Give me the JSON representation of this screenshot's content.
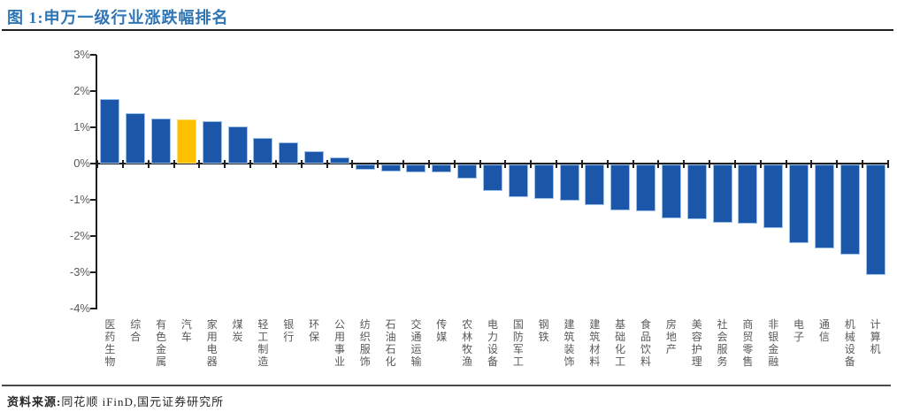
{
  "header": {
    "title": "图 1:申万一级行业涨跌幅排名"
  },
  "footer": {
    "source_label": "资料来源:",
    "source_text": "同花顺 iFinD,国元证券研究所"
  },
  "chart_data": {
    "type": "bar",
    "title": "申万一级行业涨跌幅排名",
    "xlabel": "",
    "ylabel": "",
    "ylim": [
      -4,
      3
    ],
    "ytick_labels": [
      "3%",
      "2%",
      "1%",
      "0%",
      "-1%",
      "-2%",
      "-3%",
      "-4%"
    ],
    "ytick_values": [
      3,
      2,
      1,
      0,
      -1,
      -2,
      -3,
      -4
    ],
    "grid": false,
    "legend_position": "none",
    "categories": [
      "医药生物",
      "综合",
      "有色金属",
      "汽车",
      "家用电器",
      "煤炭",
      "轻工制造",
      "银行",
      "环保",
      "公用事业",
      "纺织服饰",
      "石油石化",
      "交通运输",
      "传媒",
      "农林牧渔",
      "电力设备",
      "国防军工",
      "钢铁",
      "建筑装饰",
      "建筑材料",
      "基础化工",
      "食品饮料",
      "房地产",
      "美容护理",
      "社会服务",
      "商贸零售",
      "非银金融",
      "电子",
      "通信",
      "机械设备",
      "计算机"
    ],
    "values": [
      1.78,
      1.4,
      1.25,
      1.21,
      1.18,
      1.02,
      0.71,
      0.59,
      0.33,
      0.18,
      -0.14,
      -0.19,
      -0.21,
      -0.22,
      -0.39,
      -0.72,
      -0.91,
      -0.95,
      -1.0,
      -1.11,
      -1.26,
      -1.3,
      -1.49,
      -1.52,
      -1.61,
      -1.64,
      -1.76,
      -2.18,
      -2.31,
      -2.49,
      -3.05
    ],
    "unit": "%",
    "highlight_index": 3,
    "highlight_category": "汽车",
    "colors": {
      "bar": "#1B56A8",
      "bar_border": "#9CC2E8",
      "highlight": "#FFC000",
      "highlight_border": "#FFDE7A",
      "title": "#2E75B6",
      "axis": "#1F1F1F",
      "tick_label": "#595959"
    }
  }
}
